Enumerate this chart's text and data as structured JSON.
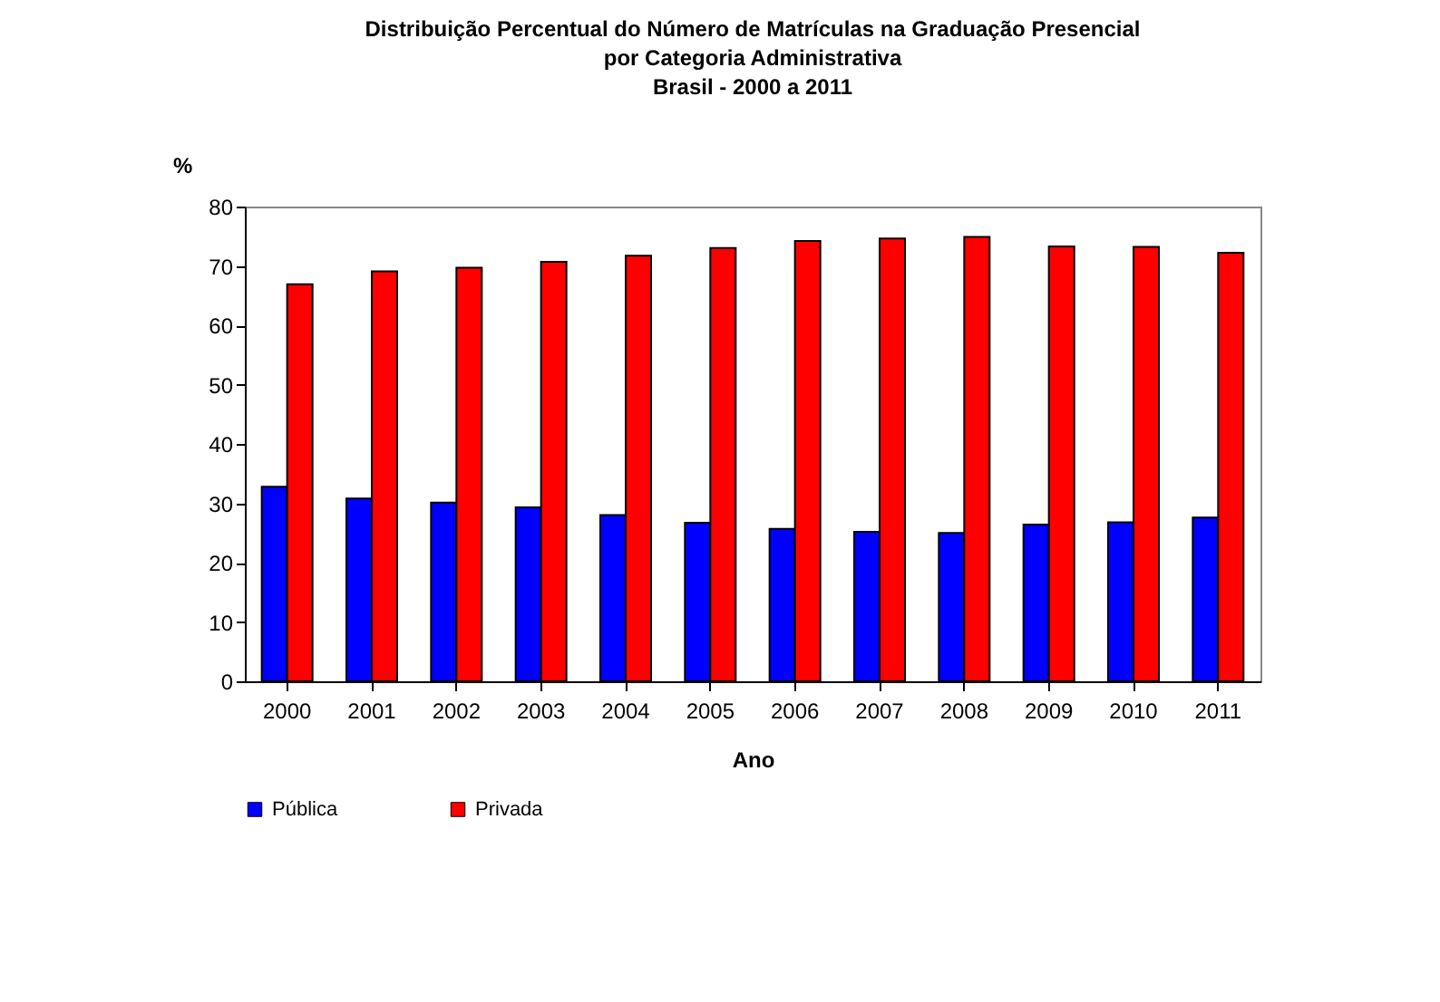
{
  "chart_data": {
    "type": "bar",
    "title": [
      "Distribuição  Percentual do Número de Matrículas  na Graduação Presencial",
      "por Categoria Administrativa",
      "Brasil  - 2000 a 2011"
    ],
    "xlabel": "Ano",
    "ylabel": "%",
    "categories": [
      "2000",
      "2001",
      "2002",
      "2003",
      "2004",
      "2005",
      "2006",
      "2007",
      "2008",
      "2009",
      "2010",
      "2011"
    ],
    "series": [
      {
        "name": "Pública",
        "color": "#0000ff",
        "values": [
          32.8,
          30.8,
          30.1,
          29.3,
          28.0,
          26.7,
          25.7,
          25.2,
          25.0,
          26.4,
          26.8,
          27.6
        ]
      },
      {
        "name": "Privada",
        "color": "#ff0000",
        "values": [
          66.9,
          69.1,
          69.7,
          70.7,
          71.7,
          73.0,
          74.2,
          74.6,
          74.9,
          73.3,
          73.2,
          72.2
        ]
      }
    ],
    "ylim": [
      0,
      80
    ],
    "yticks": [
      0,
      10,
      20,
      30,
      40,
      50,
      60,
      70,
      80
    ],
    "grid": false,
    "legend": "bottom"
  }
}
